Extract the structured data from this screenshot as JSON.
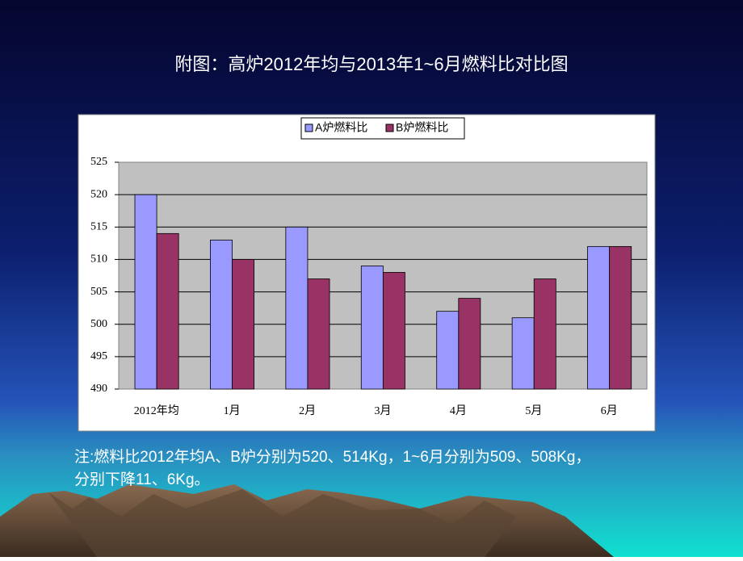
{
  "chart_data": {
    "type": "bar",
    "title": "附图：高炉2012年均与2013年1~6月燃料比对比图",
    "categories": [
      "2012年均",
      "1月",
      "2月",
      "3月",
      "4月",
      "5月",
      "6月"
    ],
    "series": [
      {
        "name": "A炉燃料比",
        "color": "#9999ff",
        "values": [
          520,
          513,
          515,
          509,
          502,
          501,
          512
        ]
      },
      {
        "name": "B炉燃料比",
        "color": "#993366",
        "values": [
          514,
          510,
          507,
          508,
          504,
          507,
          512
        ]
      }
    ],
    "ylim": [
      490,
      525
    ],
    "yticks": [
      490,
      495,
      500,
      505,
      510,
      515,
      520,
      525
    ],
    "grid": true,
    "legend": "top"
  },
  "note": [
    "注:燃料比2012年均A、B炉分别为520、514Kg，1~6月分别为509、508Kg，",
    "分别下降11、6Kg。"
  ]
}
